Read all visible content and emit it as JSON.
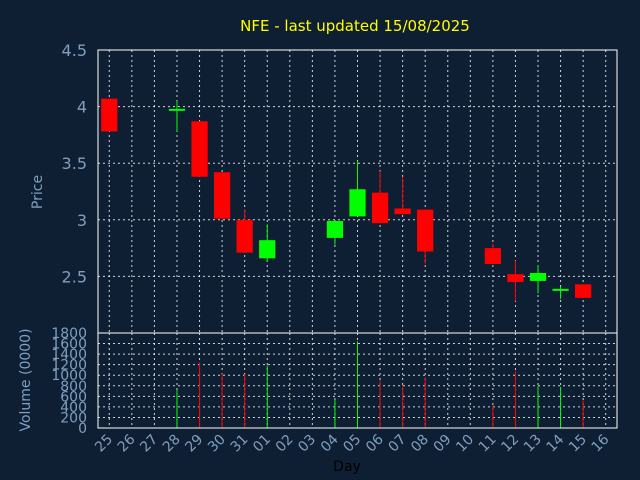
{
  "chart_data": {
    "type": "candlestick",
    "title": "NFE - last updated 15/08/2025",
    "price_axis": {
      "label": "Price",
      "ylim": [
        2.0,
        4.5
      ],
      "ticks": [
        "2",
        "2.5",
        "3",
        "3.5",
        "4",
        "4.5"
      ]
    },
    "volume_axis": {
      "label": "Volume (0000)",
      "ylim": [
        0,
        1800
      ],
      "ticks": [
        "0",
        "200",
        "400",
        "600",
        "800",
        "1000",
        "1200",
        "1400",
        "1600",
        "1800"
      ]
    },
    "xlabel": "Day",
    "days": [
      "25",
      "26",
      "27",
      "28",
      "29",
      "30",
      "31",
      "01",
      "02",
      "03",
      "04",
      "05",
      "06",
      "07",
      "08",
      "09",
      "10",
      "11",
      "12",
      "13",
      "14",
      "15",
      "16"
    ],
    "candles": [
      {
        "day": "25",
        "open": 4.07,
        "high": 4.07,
        "low": 3.78,
        "close": 3.78
      },
      {
        "day": "28",
        "open": 3.97,
        "high": 4.05,
        "low": 3.78,
        "close": 3.98
      },
      {
        "day": "29",
        "open": 3.87,
        "high": 3.87,
        "low": 3.38,
        "close": 3.38
      },
      {
        "day": "30",
        "open": 3.42,
        "high": 3.42,
        "low": 3.01,
        "close": 3.01
      },
      {
        "day": "31",
        "open": 3.0,
        "high": 3.09,
        "low": 2.71,
        "close": 2.71
      },
      {
        "day": "01",
        "open": 2.66,
        "high": 2.96,
        "low": 2.63,
        "close": 2.82
      },
      {
        "day": "04",
        "open": 2.84,
        "high": 2.99,
        "low": 2.78,
        "close": 2.99
      },
      {
        "day": "05",
        "open": 3.03,
        "high": 3.52,
        "low": 3.03,
        "close": 3.27
      },
      {
        "day": "06",
        "open": 3.24,
        "high": 3.43,
        "low": 2.97,
        "close": 2.97
      },
      {
        "day": "07",
        "open": 3.1,
        "high": 3.38,
        "low": 3.05,
        "close": 3.05
      },
      {
        "day": "08",
        "open": 3.09,
        "high": 3.09,
        "low": 2.61,
        "close": 2.72
      },
      {
        "day": "11",
        "open": 2.75,
        "high": 2.79,
        "low": 2.61,
        "close": 2.61
      },
      {
        "day": "12",
        "open": 2.52,
        "high": 2.64,
        "low": 2.28,
        "close": 2.45
      },
      {
        "day": "13",
        "open": 2.46,
        "high": 2.6,
        "low": 2.35,
        "close": 2.53
      },
      {
        "day": "14",
        "open": 2.38,
        "high": 2.41,
        "low": 2.3,
        "close": 2.39
      },
      {
        "day": "15",
        "open": 2.43,
        "high": 2.43,
        "low": 2.31,
        "close": 2.31
      }
    ],
    "volumes": [
      {
        "day": "28",
        "value": 720
      },
      {
        "day": "29",
        "value": 1240
      },
      {
        "day": "30",
        "value": 1030
      },
      {
        "day": "31",
        "value": 1020
      },
      {
        "day": "01",
        "value": 1180
      },
      {
        "day": "04",
        "value": 530
      },
      {
        "day": "05",
        "value": 1640
      },
      {
        "day": "06",
        "value": 900
      },
      {
        "day": "07",
        "value": 810
      },
      {
        "day": "08",
        "value": 950
      },
      {
        "day": "11",
        "value": 430
      },
      {
        "day": "12",
        "value": 1080
      },
      {
        "day": "13",
        "value": 790
      },
      {
        "day": "14",
        "value": 780
      },
      {
        "day": "15",
        "value": 520
      }
    ],
    "grid": true,
    "colors": {
      "background": "#0f1f33",
      "plot_background": "#0f1f33",
      "grid": "#ffffff",
      "axis": "#ffffff",
      "tick_text": "#7f9fbf",
      "title": "#ffff00",
      "up": "#00ff00",
      "down": "#ff0000"
    }
  }
}
